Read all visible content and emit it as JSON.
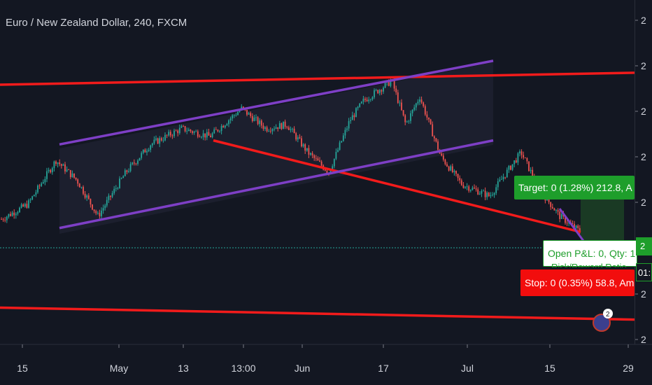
{
  "header": {
    "title": "Euro / New Zealand Dollar, 240, FXCM"
  },
  "position_labels": {
    "target": "Target: 0 (1.28%) 212.8, A",
    "pnl": "Open P&L: 0, Qty: 1",
    "pnl_sub": "Risk/Reward Ratio",
    "stop": "Stop: 0 (0.35%) 58.8, Am"
  },
  "price_axis": {
    "current_tag": "2",
    "timer_tag": "01:"
  },
  "avatar_badge": "2",
  "colors": {
    "background": "#131722",
    "up_candle": "#26a69a",
    "down_candle": "#ef5350",
    "trendline": "#f21b1b",
    "channel": "#7e3fc6",
    "target_green": "#1e9e2b",
    "stop_red": "#f20d0d"
  },
  "chart_data": {
    "type": "candlestick",
    "symbol": "Euro / New Zealand Dollar",
    "interval": "240",
    "source": "FXCM",
    "x_tick_labels": [
      "15",
      "May",
      "13",
      "13:00",
      "Jun",
      "17",
      "Jul",
      "15",
      "29"
    ],
    "y_tick_labels": [
      "2",
      "2",
      "2",
      "2",
      "2",
      "2",
      "2",
      "2"
    ],
    "grid": false,
    "price_path": [
      [
        0,
        1.71
      ],
      [
        40,
        1.714
      ],
      [
        80,
        1.725
      ],
      [
        110,
        1.72
      ],
      [
        140,
        1.711
      ],
      [
        180,
        1.722
      ],
      [
        215,
        1.729
      ],
      [
        260,
        1.733
      ],
      [
        300,
        1.731
      ],
      [
        345,
        1.738
      ],
      [
        380,
        1.733
      ],
      [
        410,
        1.734
      ],
      [
        440,
        1.727
      ],
      [
        470,
        1.722
      ],
      [
        500,
        1.735
      ],
      [
        520,
        1.74
      ],
      [
        560,
        1.745
      ],
      [
        580,
        1.734
      ],
      [
        600,
        1.741
      ],
      [
        630,
        1.726
      ],
      [
        660,
        1.719
      ],
      [
        700,
        1.716
      ],
      [
        720,
        1.721
      ],
      [
        745,
        1.727
      ],
      [
        770,
        1.718
      ],
      [
        800,
        1.711
      ],
      [
        830,
        1.707
      ]
    ],
    "drawings": [
      {
        "kind": "trendline",
        "points": [
          [
            0,
            1.744
          ],
          [
            907,
            1.747
          ]
        ]
      },
      {
        "kind": "trendline",
        "points": [
          [
            305,
            1.73
          ],
          [
            830,
            1.707
          ]
        ]
      },
      {
        "kind": "trendline",
        "points": [
          [
            0,
            1.688
          ],
          [
            907,
            1.685
          ]
        ]
      },
      {
        "kind": "channel_upper",
        "points": [
          [
            85,
            1.729
          ],
          [
            705,
            1.75
          ]
        ]
      },
      {
        "kind": "channel_lower",
        "points": [
          [
            85,
            1.708
          ],
          [
            705,
            1.73
          ]
        ]
      },
      {
        "kind": "horizontal_dotted",
        "price": 1.706
      }
    ]
  }
}
